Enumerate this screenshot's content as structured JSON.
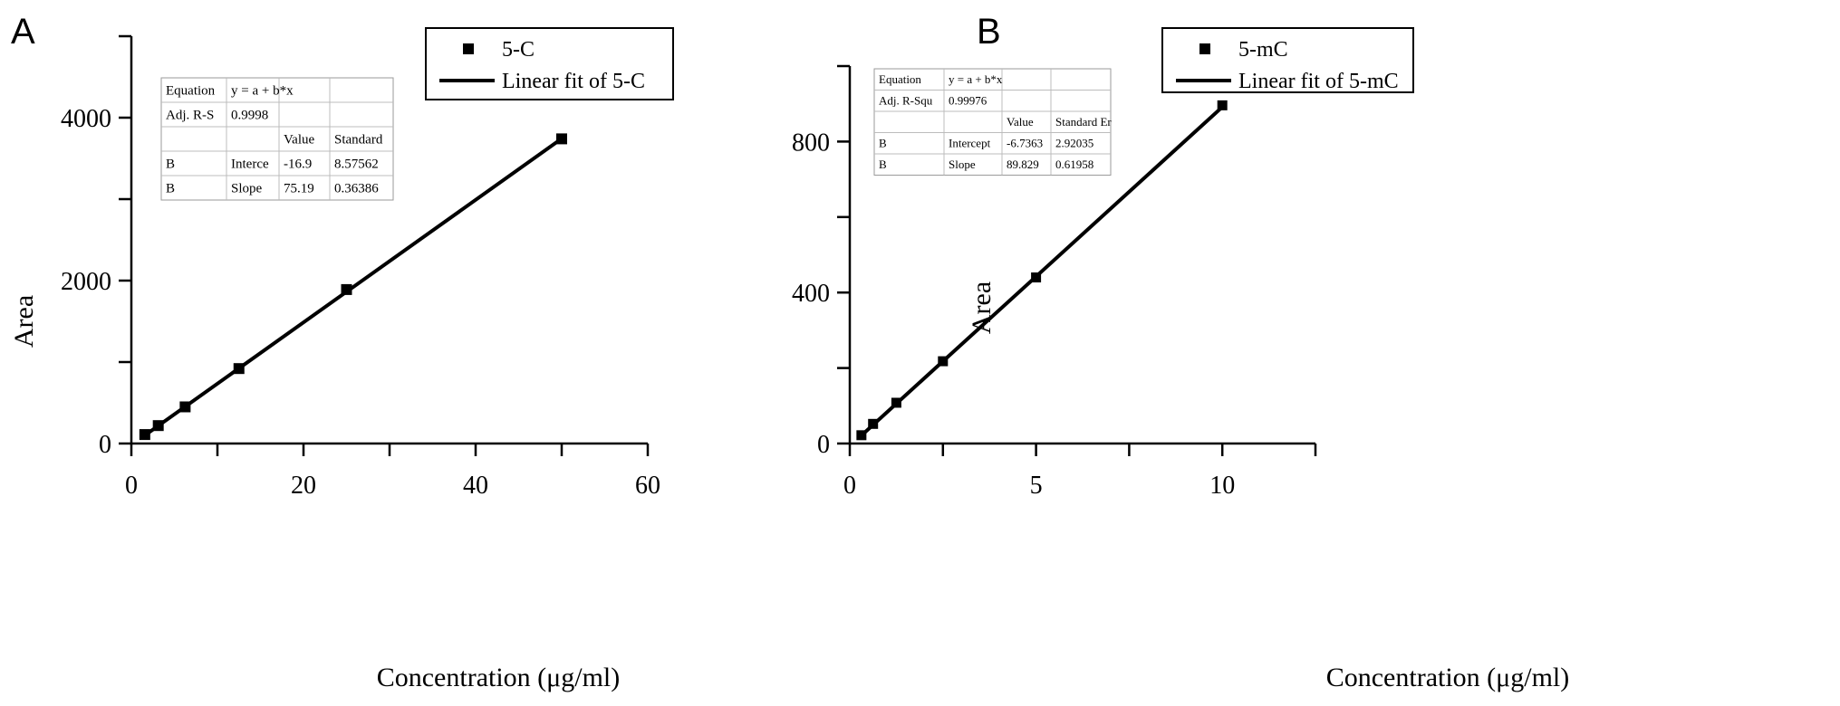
{
  "chart_data": [
    {
      "panel_label": "A",
      "type": "scatter",
      "xlabel": "Concentration (μg/ml)",
      "ylabel": "Area",
      "xlim": [
        0,
        60
      ],
      "ylim": [
        0,
        5000
      ],
      "x_ticks": [
        0,
        20,
        40,
        60
      ],
      "x_minor_ticks": [
        10,
        30,
        50
      ],
      "y_ticks": [
        0,
        2000,
        4000
      ],
      "y_minor_ticks": [
        1000,
        3000,
        5000
      ],
      "series": [
        {
          "name": "5-C",
          "kind": "points",
          "x": [
            1.5625,
            3.125,
            6.25,
            12.5,
            25,
            50
          ],
          "y": [
            110,
            220,
            450,
            920,
            1890,
            3740
          ]
        },
        {
          "name": "Linear fit of  5-C",
          "kind": "line",
          "x": [
            1.5625,
            50
          ],
          "y": [
            100.6,
            3742.6
          ]
        }
      ],
      "legend_position": "top-right",
      "stats_table": [
        [
          "Equation",
          "y = a + b*x",
          ""
        ],
        [
          "Adj. R-S",
          "0.9998",
          ""
        ],
        [
          "",
          "",
          "Value",
          "Standard"
        ],
        [
          "B",
          "Interce",
          "-16.9",
          "8.57562"
        ],
        [
          "B",
          "Slope",
          "75.19",
          "0.36386"
        ]
      ]
    },
    {
      "panel_label": "B",
      "type": "scatter",
      "xlabel": "Concentration (μg/ml)",
      "ylabel": "Area",
      "xlim": [
        0,
        12.5
      ],
      "ylim": [
        0,
        1000
      ],
      "x_ticks": [
        0,
        5,
        10
      ],
      "x_minor_ticks": [
        2.5,
        7.5,
        12.5
      ],
      "y_ticks": [
        0,
        400,
        800
      ],
      "y_minor_ticks": [
        200,
        600,
        1000
      ],
      "series": [
        {
          "name": "5-mC",
          "kind": "points",
          "x": [
            0.3125,
            0.625,
            1.25,
            2.5,
            5,
            10
          ],
          "y": [
            22,
            52,
            108,
            218,
            440,
            896
          ]
        },
        {
          "name": "Linear fit of 5-mC",
          "kind": "line",
          "x": [
            0.3125,
            10
          ],
          "y": [
            21.3,
            891.6
          ]
        }
      ],
      "legend_position": "top-right",
      "stats_table": [
        [
          "Equation",
          "y = a + b*x",
          ""
        ],
        [
          "Adj. R-Squ",
          "0.99976",
          ""
        ],
        [
          "",
          "",
          "Value",
          "Standard Er"
        ],
        [
          "B",
          "Intercept",
          "-6.7363",
          "2.92035"
        ],
        [
          "B",
          "Slope",
          "89.829",
          "0.61958"
        ]
      ]
    }
  ]
}
